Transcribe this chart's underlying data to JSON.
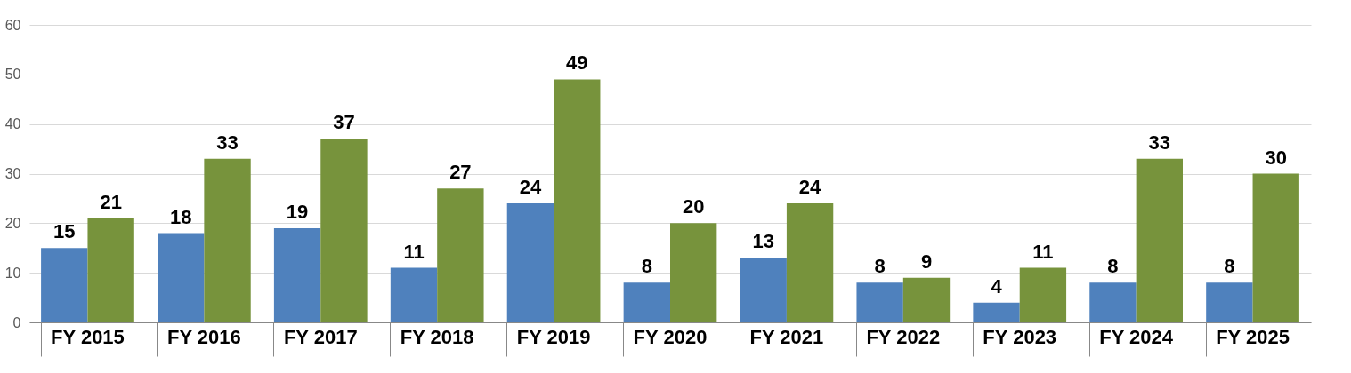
{
  "chart_data": {
    "type": "bar",
    "categories": [
      "FY 2015",
      "FY 2016",
      "FY 2017",
      "FY 2018",
      "FY 2019",
      "FY 2020",
      "FY 2021",
      "FY 2022",
      "FY 2023",
      "FY 2024",
      "FY 2025"
    ],
    "series": [
      {
        "color": "#4f81bd",
        "values": [
          15,
          18,
          19,
          11,
          24,
          8,
          13,
          8,
          4,
          8,
          8
        ]
      },
      {
        "color": "#77933c",
        "values": [
          21,
          33,
          37,
          27,
          49,
          20,
          24,
          9,
          11,
          33,
          30
        ]
      }
    ],
    "ylim": [
      0,
      60
    ],
    "yticks": [
      0,
      10,
      20,
      30,
      40,
      50,
      60
    ],
    "grid": "y",
    "data_labels": true,
    "legend": false
  }
}
